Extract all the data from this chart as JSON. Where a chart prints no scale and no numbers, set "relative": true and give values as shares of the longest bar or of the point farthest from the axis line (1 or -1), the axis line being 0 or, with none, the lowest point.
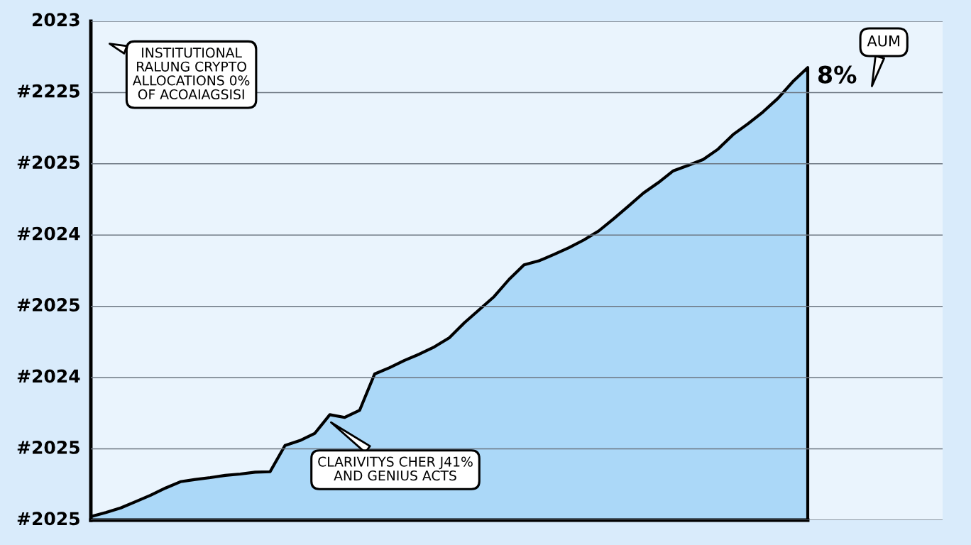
{
  "chart_data": {
    "type": "area",
    "relative": true,
    "categories": [
      null,
      null,
      null,
      null,
      null,
      null,
      null,
      null,
      null,
      null,
      null,
      null,
      null,
      null,
      null,
      null,
      null,
      null,
      null,
      null,
      null,
      null,
      null,
      null,
      null,
      null,
      null,
      null,
      null,
      null,
      null,
      null,
      null,
      null,
      null,
      null,
      null,
      null,
      null,
      null,
      null,
      null,
      null,
      null,
      null,
      null,
      null,
      null,
      null
    ],
    "values": [
      0.008,
      0.017,
      0.027,
      0.041,
      0.055,
      0.071,
      0.085,
      0.09,
      0.094,
      0.099,
      0.102,
      0.106,
      0.107,
      0.165,
      0.176,
      0.192,
      0.233,
      0.227,
      0.243,
      0.323,
      0.337,
      0.353,
      0.367,
      0.383,
      0.403,
      0.436,
      0.465,
      0.494,
      0.532,
      0.564,
      0.573,
      0.587,
      0.602,
      0.619,
      0.639,
      0.666,
      0.694,
      0.723,
      0.746,
      0.772,
      0.784,
      0.797,
      0.82,
      0.852,
      0.876,
      0.902,
      0.932,
      0.969,
      1
    ],
    "color": "#abd8f8",
    "grid": "y",
    "annotations": [
      "2023",
      "#2225",
      "#2025",
      "#2024",
      "#2025",
      "#2024",
      "#2025",
      "#2025",
      "INSTITUTIONAL\nRALUNG CRYPTO\nALLOCATIONS 0%\nOF ACOAIAGSISI",
      "CLARIVITYS CHER J41%\nAND GENIUS ACTS",
      "8%",
      "AUM"
    ]
  }
}
